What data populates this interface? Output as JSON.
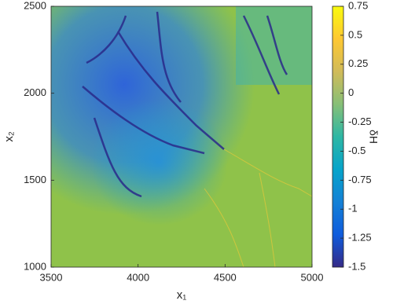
{
  "chart_data": {
    "type": "heatmap",
    "xlabel": "x₁",
    "ylabel": "x₂",
    "colorbar_label": "δH",
    "xlim": [
      3500,
      5000
    ],
    "xticks": [
      3500,
      4000,
      4500,
      5000
    ],
    "ylim": [
      1000,
      2500
    ],
    "yticks": [
      1000,
      1500,
      2000,
      2500
    ],
    "clim": [
      -1.5,
      0.75
    ],
    "cticks": [
      -1.5,
      -1.25,
      -1,
      -0.75,
      -0.5,
      -0.25,
      0,
      0.25,
      0.5,
      0.75
    ],
    "colormap": [
      "#352a87",
      "#0f5cdd",
      "#1481d6",
      "#06a4ca",
      "#2eb7a4",
      "#87bf77",
      "#d1bb59",
      "#fec832",
      "#f9fb0e"
    ]
  }
}
